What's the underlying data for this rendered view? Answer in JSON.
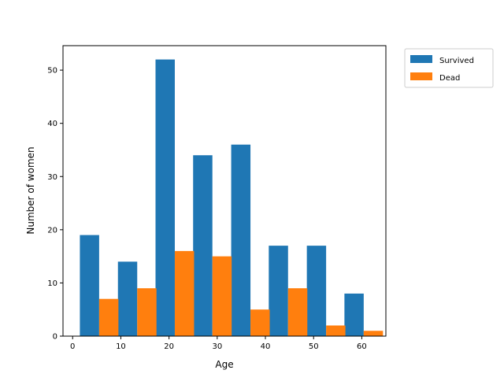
{
  "chart_data": {
    "type": "bar",
    "xlabel": "Age",
    "ylabel": "Number of women",
    "xlim": [
      -2,
      65
    ],
    "ylim": [
      0,
      54.6
    ],
    "x_ticks": [
      0,
      10,
      20,
      30,
      40,
      50,
      60
    ],
    "y_ticks": [
      0,
      10,
      20,
      30,
      40,
      50
    ],
    "bin_width": 8,
    "bin_starts": [
      1.5,
      9.4,
      17.2,
      25.0,
      32.9,
      40.7,
      48.6,
      56.4
    ],
    "legend_position": "outside-upper-right",
    "grid": false,
    "series": [
      {
        "name": "Survived",
        "color": "#1f77b4",
        "values": [
          19,
          14,
          52,
          34,
          36,
          17,
          17,
          8
        ]
      },
      {
        "name": "Dead",
        "color": "#ff7f0e",
        "values": [
          7,
          9,
          16,
          15,
          5,
          9,
          2,
          1
        ]
      }
    ]
  }
}
